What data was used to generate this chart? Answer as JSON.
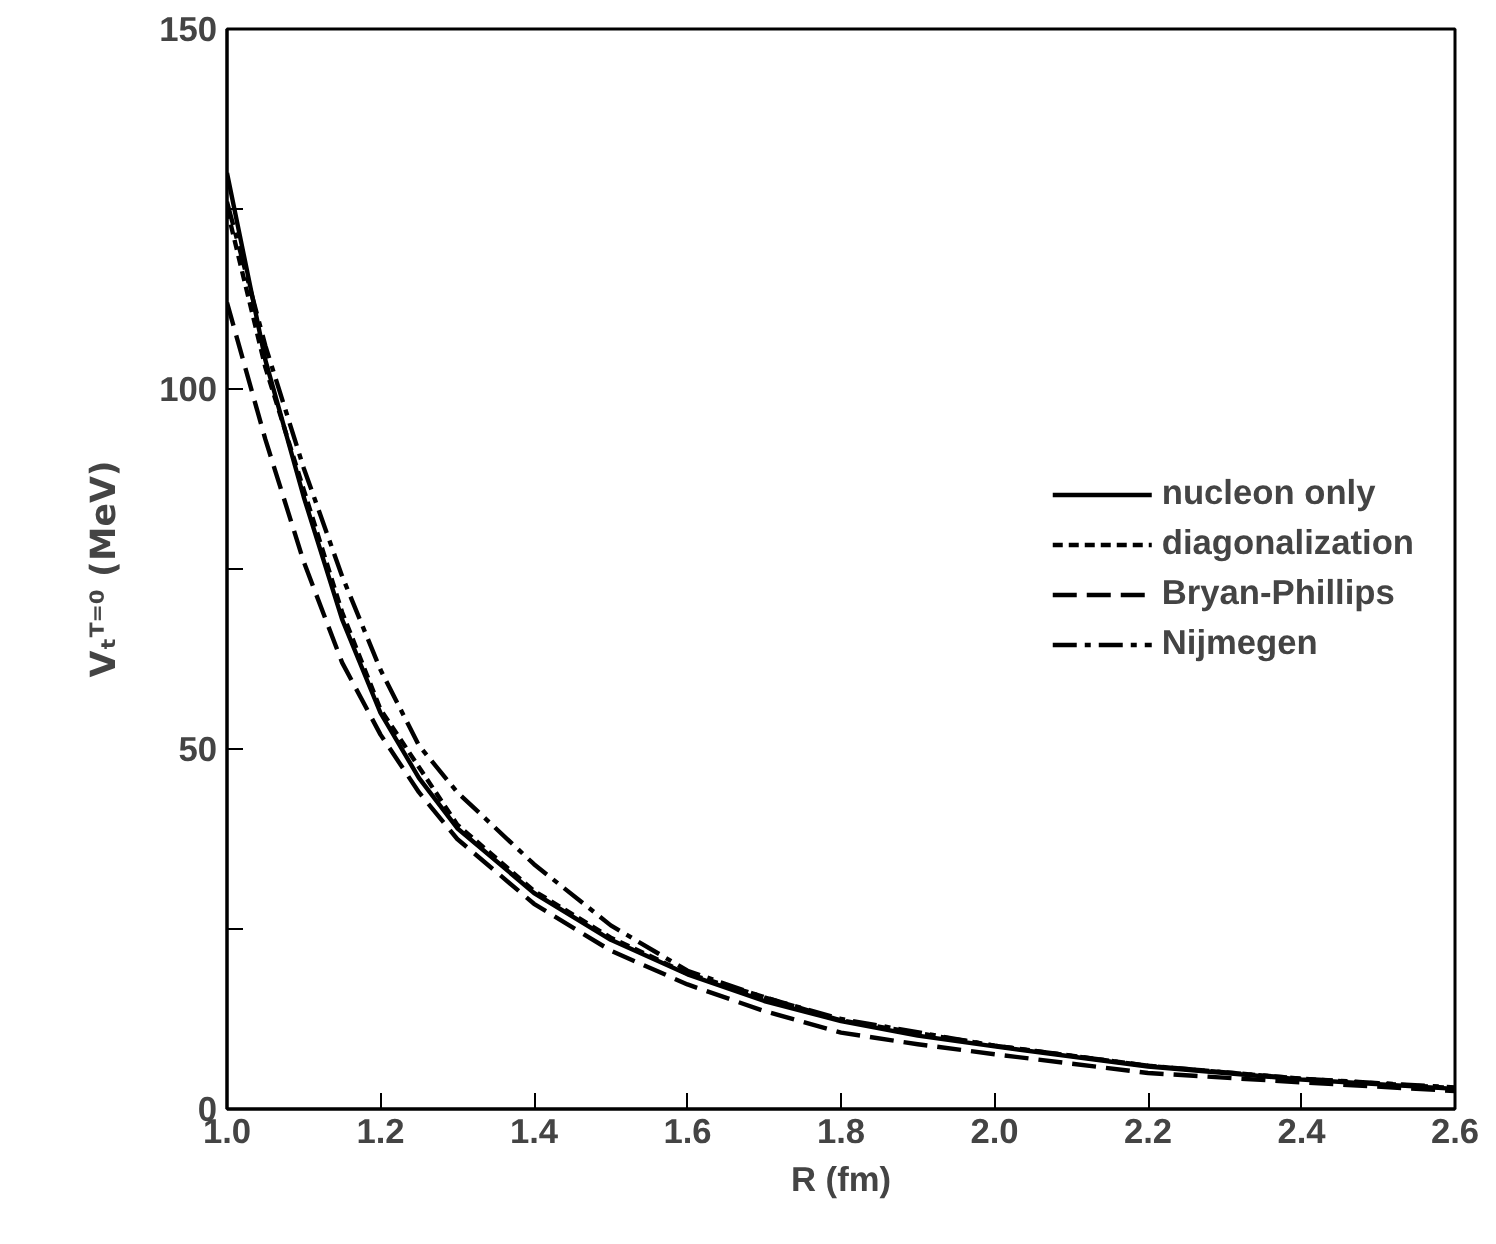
{
  "chart_data": {
    "type": "line",
    "xlabel": "R (fm)",
    "ylabel": "Vₜᵀ⁼⁰ (MeV)",
    "xlim": [
      1.0,
      2.6
    ],
    "ylim": [
      0,
      150
    ],
    "xticks": [
      {
        "value": 1.0,
        "label": "1.0"
      },
      {
        "value": 1.2,
        "label": "1.2"
      },
      {
        "value": 1.4,
        "label": "1.4"
      },
      {
        "value": 1.6,
        "label": "1.6"
      },
      {
        "value": 1.8,
        "label": "1.8"
      },
      {
        "value": 2.0,
        "label": "2.0"
      },
      {
        "value": 2.2,
        "label": "2.2"
      },
      {
        "value": 2.4,
        "label": "2.4"
      },
      {
        "value": 2.6,
        "label": "2.6"
      }
    ],
    "yticks": [
      0,
      {
        "value": 25,
        "label": null
      },
      50,
      {
        "value": 75,
        "label": null
      },
      100,
      {
        "value": 125,
        "label": null
      },
      150
    ],
    "grid": false,
    "legend": "right",
    "marker": "none",
    "series": [
      {
        "name": "nucleon only",
        "color": "#000000",
        "line_style": "solid",
        "x": [
          1.0,
          1.05,
          1.1,
          1.15,
          1.2,
          1.25,
          1.3,
          1.4,
          1.5,
          1.6,
          1.7,
          1.8,
          1.9,
          2.0,
          2.2,
          2.4,
          2.6
        ],
        "values": [
          130,
          104,
          85,
          68,
          55,
          46,
          39,
          30,
          23.5,
          18.7,
          15,
          12.2,
          10.2,
          8.7,
          5.9,
          4.1,
          2.8
        ]
      },
      {
        "name": "diagonalization",
        "color": "#000000",
        "line_style": "dashed",
        "x": [
          1.0,
          1.05,
          1.1,
          1.15,
          1.2,
          1.3,
          1.4,
          1.5,
          1.6,
          1.8,
          2.0,
          2.2,
          2.4,
          2.6
        ],
        "values": [
          125,
          103,
          86,
          69,
          55.5,
          39.5,
          30.3,
          23.8,
          18.8,
          12.3,
          8.8,
          6.0,
          4.2,
          2.9
        ]
      },
      {
        "name": "Bryan-Phillips",
        "color": "#000000",
        "line_style": "longdash",
        "x": [
          1.0,
          1.05,
          1.1,
          1.15,
          1.2,
          1.25,
          1.3,
          1.4,
          1.5,
          1.6,
          1.7,
          1.8,
          1.9,
          2.0,
          2.2,
          2.4,
          2.6
        ],
        "values": [
          112,
          93,
          76,
          62,
          52,
          44,
          37.5,
          28.5,
          22,
          17.3,
          13.6,
          10.6,
          9,
          7.6,
          5.0,
          3.7,
          2.5
        ]
      },
      {
        "name": "Nijmegen",
        "color": "#000000",
        "line_style": "dashdot",
        "x": [
          1.0,
          1.05,
          1.1,
          1.15,
          1.2,
          1.25,
          1.3,
          1.4,
          1.5,
          1.6,
          1.7,
          1.8,
          2.0,
          2.2,
          2.4,
          2.6
        ],
        "values": [
          126,
          106,
          89,
          74,
          61,
          50.5,
          44,
          34,
          25.5,
          19.2,
          15.5,
          12.5,
          8.8,
          6.0,
          4.2,
          3.0
        ]
      }
    ]
  }
}
